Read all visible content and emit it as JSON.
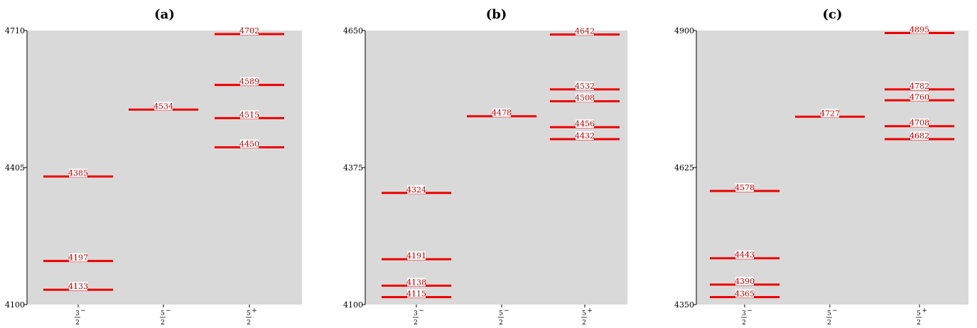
{
  "chart_data": [
    {
      "type": "level-diagram",
      "title": "(a)",
      "ylim": [
        4100,
        4710
      ],
      "yticks": [
        4100,
        4405,
        4710
      ],
      "categories": [
        "3/2 −",
        "5/2 −",
        "5/2 +"
      ],
      "category_labels": [
        {
          "num": "3",
          "den": "2",
          "parity": "−"
        },
        {
          "num": "5",
          "den": "2",
          "parity": "−"
        },
        {
          "num": "5",
          "den": "2",
          "parity": "+"
        }
      ],
      "levels": [
        {
          "category": "3/2 −",
          "value": 4385
        },
        {
          "category": "3/2 −",
          "value": 4197
        },
        {
          "category": "3/2 −",
          "value": 4133
        },
        {
          "category": "5/2 −",
          "value": 4534
        },
        {
          "category": "5/2 +",
          "value": 4702
        },
        {
          "category": "5/2 +",
          "value": 4589
        },
        {
          "category": "5/2 +",
          "value": 4515
        },
        {
          "category": "5/2 +",
          "value": 4450
        }
      ],
      "grid": false
    },
    {
      "type": "level-diagram",
      "title": "(b)",
      "ylim": [
        4100,
        4650
      ],
      "yticks": [
        4100,
        4375,
        4650
      ],
      "categories": [
        "3/2 −",
        "5/2 −",
        "5/2 +"
      ],
      "category_labels": [
        {
          "num": "3",
          "den": "2",
          "parity": "−"
        },
        {
          "num": "5",
          "den": "2",
          "parity": "−"
        },
        {
          "num": "5",
          "den": "2",
          "parity": "+"
        }
      ],
      "levels": [
        {
          "category": "3/2 −",
          "value": 4324
        },
        {
          "category": "3/2 −",
          "value": 4191
        },
        {
          "category": "3/2 −",
          "value": 4138
        },
        {
          "category": "3/2 −",
          "value": 4115
        },
        {
          "category": "5/2 −",
          "value": 4478
        },
        {
          "category": "5/2 +",
          "value": 4642
        },
        {
          "category": "5/2 +",
          "value": 4532
        },
        {
          "category": "5/2 +",
          "value": 4508
        },
        {
          "category": "5/2 +",
          "value": 4456
        },
        {
          "category": "5/2 +",
          "value": 4432
        }
      ],
      "grid": false
    },
    {
      "type": "level-diagram",
      "title": "(c)",
      "ylim": [
        4350,
        4900
      ],
      "yticks": [
        4350,
        4625,
        4900
      ],
      "categories": [
        "3/2 −",
        "5/2 −",
        "5/2 +"
      ],
      "category_labels": [
        {
          "num": "3",
          "den": "2",
          "parity": "−"
        },
        {
          "num": "5",
          "den": "2",
          "parity": "−"
        },
        {
          "num": "5",
          "den": "2",
          "parity": "+"
        }
      ],
      "levels": [
        {
          "category": "3/2 −",
          "value": 4578
        },
        {
          "category": "3/2 −",
          "value": 4443
        },
        {
          "category": "3/2 −",
          "value": 4390
        },
        {
          "category": "3/2 −",
          "value": 4365
        },
        {
          "category": "5/2 −",
          "value": 4727
        },
        {
          "category": "5/2 +",
          "value": 4895
        },
        {
          "category": "5/2 +",
          "value": 4782
        },
        {
          "category": "5/2 +",
          "value": 4760
        },
        {
          "category": "5/2 +",
          "value": 4708
        },
        {
          "category": "5/2 +",
          "value": 4682
        }
      ],
      "grid": false
    }
  ],
  "colors": {
    "level": "#ee0000",
    "label": "#dd0000",
    "background": "#d9d9d9"
  }
}
